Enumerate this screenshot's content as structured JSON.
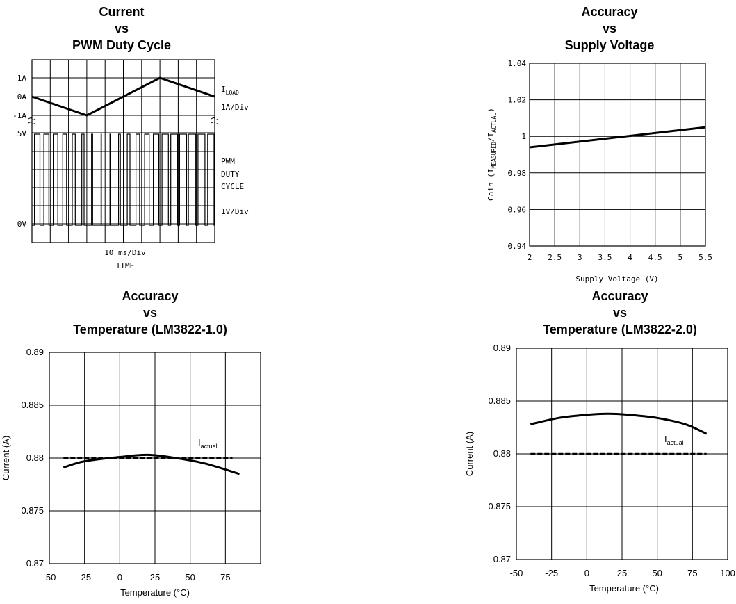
{
  "chart_data": [
    {
      "type": "line",
      "title": [
        "Current",
        "vs",
        "PWM Duty Cycle"
      ],
      "xlabel": "TIME",
      "x_scale_label": "10 ms/Div",
      "top_trace": {
        "name": "I",
        "name_sub": "LOAD",
        "scale": "1A/Div",
        "ticks": [
          "1A",
          "0A",
          "-1A"
        ],
        "points": [
          [
            0,
            0
          ],
          [
            3,
            -1
          ],
          [
            7,
            1
          ],
          [
            10,
            0
          ]
        ]
      },
      "bottom_trace": {
        "name_lines": [
          "PWM",
          "DUTY",
          "CYCLE"
        ],
        "scale": "1V/Div",
        "ticks": [
          "5V",
          "0V"
        ],
        "pulse_duty": [
          0.6,
          0.55,
          0.5,
          0.42,
          0.33,
          0.25,
          0.12,
          0.04,
          0.08,
          0.2,
          0.3,
          0.4,
          0.5,
          0.6,
          0.7,
          0.78,
          0.85,
          0.92,
          0.82,
          0.7
        ]
      },
      "divisions_x": 10,
      "grid": true
    },
    {
      "type": "line",
      "title": [
        "Accuracy",
        "vs",
        "Supply Voltage"
      ],
      "xlabel": "Supply Voltage (V)",
      "ylabel": {
        "prefix": "Gain (I",
        "sub1": "MEASURED",
        "mid": "/I",
        "sub2": "ACTUAL",
        "suffix": ")"
      },
      "xlim": [
        2,
        5.5
      ],
      "ylim": [
        0.94,
        1.04
      ],
      "xticks": [
        "2",
        "2.5",
        "3",
        "3.5",
        "4",
        "4.5",
        "5",
        "5.5"
      ],
      "yticks": [
        "0.94",
        "0.96",
        "0.98",
        "1",
        "1.02",
        "1.04"
      ],
      "grid": true,
      "series": [
        {
          "x": [
            2,
            5.5
          ],
          "y": [
            0.994,
            1.005
          ]
        }
      ]
    },
    {
      "type": "line",
      "title": [
        "Accuracy",
        "vs",
        "Temperature (LM3822-1.0)"
      ],
      "xlabel": "Temperature (°C)",
      "ylabel": "Current (A)",
      "xlim": [
        -50,
        100
      ],
      "ylim": [
        0.87,
        0.89
      ],
      "xticks": [
        "-50",
        "-25",
        "0",
        "25",
        "50",
        "75"
      ],
      "yticks": [
        "0.87",
        "0.875",
        "0.88",
        "0.885",
        "0.89"
      ],
      "grid": true,
      "annotation": {
        "text": "I",
        "sub": "actual"
      },
      "series": [
        {
          "style": "solid",
          "x": [
            -40,
            -25,
            0,
            20,
            40,
            60,
            85
          ],
          "y": [
            0.8791,
            0.8797,
            0.8801,
            0.8803,
            0.88,
            0.8795,
            0.8785
          ]
        },
        {
          "style": "dashed",
          "x": [
            -40,
            80
          ],
          "y": [
            0.88,
            0.88
          ]
        }
      ]
    },
    {
      "type": "line",
      "title": [
        "Accuracy",
        "vs",
        "Temperature (LM3822-2.0)"
      ],
      "xlabel": "Temperature (°C)",
      "ylabel": "Current (A)",
      "xlim": [
        -50,
        100
      ],
      "ylim": [
        0.87,
        0.89
      ],
      "xticks": [
        "-50",
        "-25",
        "0",
        "25",
        "50",
        "75",
        "100"
      ],
      "yticks": [
        "0.87",
        "0.875",
        "0.88",
        "0.885",
        "0.89"
      ],
      "grid": true,
      "annotation": {
        "text": "I",
        "sub": "actual"
      },
      "series": [
        {
          "style": "solid",
          "x": [
            -40,
            -20,
            0,
            15,
            30,
            50,
            70,
            85
          ],
          "y": [
            0.8828,
            0.8834,
            0.8837,
            0.8838,
            0.8837,
            0.8834,
            0.8828,
            0.8819
          ]
        },
        {
          "style": "dashed",
          "x": [
            -40,
            85
          ],
          "y": [
            0.88,
            0.88
          ]
        }
      ]
    }
  ]
}
